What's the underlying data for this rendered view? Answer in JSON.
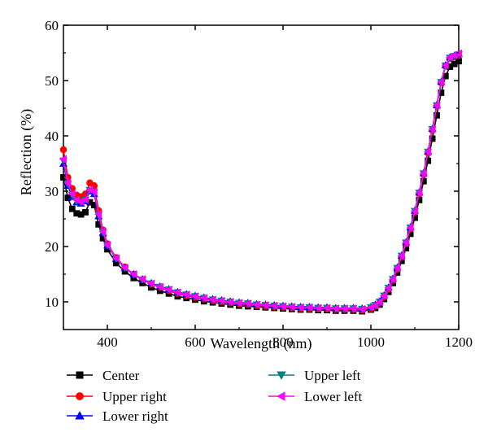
{
  "chart_data": {
    "type": "line",
    "xlabel": "Wavelength (nm)",
    "ylabel": "Reflection (%)",
    "xlim": [
      300,
      1200
    ],
    "ylim": [
      5,
      60
    ],
    "xticks": [
      400,
      600,
      800,
      1000,
      1200
    ],
    "yticks": [
      10,
      20,
      30,
      40,
      50,
      60
    ],
    "grid": false,
    "legend_position": "bottom",
    "x": [
      300,
      310,
      320,
      330,
      340,
      350,
      360,
      370,
      380,
      390,
      400,
      420,
      440,
      460,
      480,
      500,
      520,
      540,
      560,
      580,
      600,
      620,
      640,
      660,
      680,
      700,
      720,
      740,
      760,
      780,
      800,
      820,
      840,
      860,
      880,
      900,
      920,
      940,
      960,
      980,
      1000,
      1010,
      1020,
      1030,
      1040,
      1050,
      1060,
      1070,
      1080,
      1090,
      1100,
      1110,
      1120,
      1130,
      1140,
      1150,
      1160,
      1170,
      1180,
      1190,
      1200
    ],
    "series": [
      {
        "name": "Center",
        "color": "#000000",
        "marker": "square",
        "values": [
          32.5,
          28.8,
          26.8,
          26.0,
          25.8,
          26.2,
          28.0,
          27.5,
          24.0,
          21.5,
          19.5,
          17.0,
          15.5,
          14.3,
          13.4,
          12.6,
          12.0,
          11.5,
          11.0,
          10.7,
          10.4,
          10.1,
          9.9,
          9.7,
          9.5,
          9.3,
          9.2,
          9.1,
          9.0,
          8.9,
          8.8,
          8.7,
          8.6,
          8.6,
          8.5,
          8.5,
          8.4,
          8.4,
          8.4,
          8.3,
          8.6,
          8.9,
          9.5,
          10.5,
          11.8,
          13.4,
          15.3,
          17.4,
          19.7,
          22.3,
          25.2,
          28.4,
          31.8,
          35.5,
          39.5,
          43.7,
          47.8,
          50.8,
          52.5,
          53.0,
          53.5
        ]
      },
      {
        "name": "Upper right",
        "color": "#ff0000",
        "marker": "circle",
        "values": [
          37.5,
          32.5,
          30.5,
          29.3,
          29.0,
          29.5,
          31.5,
          31.0,
          26.5,
          23.0,
          20.5,
          18.0,
          16.3,
          15.0,
          14.0,
          13.2,
          12.6,
          12.0,
          11.5,
          11.1,
          10.8,
          10.5,
          10.2,
          10.0,
          9.8,
          9.6,
          9.5,
          9.3,
          9.2,
          9.1,
          9.0,
          8.9,
          8.8,
          8.8,
          8.7,
          8.7,
          8.6,
          8.6,
          8.6,
          8.5,
          8.8,
          9.2,
          9.8,
          10.9,
          12.3,
          13.9,
          15.9,
          18.1,
          20.5,
          23.2,
          26.2,
          29.5,
          33.0,
          36.9,
          41.0,
          45.4,
          49.6,
          52.6,
          54.0,
          54.3,
          54.5
        ]
      },
      {
        "name": "Lower right",
        "color": "#0000ff",
        "marker": "triangle-up",
        "values": [
          35.0,
          31.0,
          29.0,
          28.0,
          27.8,
          28.2,
          30.0,
          29.5,
          25.5,
          22.5,
          20.2,
          17.8,
          16.2,
          15.0,
          14.1,
          13.4,
          12.8,
          12.3,
          11.8,
          11.4,
          11.1,
          10.8,
          10.5,
          10.3,
          10.1,
          9.9,
          9.8,
          9.6,
          9.5,
          9.4,
          9.3,
          9.2,
          9.1,
          9.1,
          9.0,
          9.0,
          8.9,
          8.9,
          8.9,
          8.8,
          9.1,
          9.5,
          10.1,
          11.2,
          12.6,
          14.2,
          16.2,
          18.4,
          20.8,
          23.5,
          26.5,
          29.8,
          33.3,
          37.2,
          41.3,
          45.6,
          49.8,
          52.8,
          54.2,
          54.5,
          54.8
        ]
      },
      {
        "name": "Upper left",
        "color": "#008080",
        "marker": "triangle-down",
        "values": [
          35.5,
          31.3,
          29.3,
          28.2,
          28.0,
          28.4,
          30.2,
          29.8,
          25.7,
          22.6,
          20.2,
          17.8,
          16.1,
          14.9,
          14.0,
          13.3,
          12.7,
          12.2,
          11.7,
          11.3,
          11.0,
          10.7,
          10.4,
          10.2,
          10.0,
          9.8,
          9.7,
          9.5,
          9.4,
          9.3,
          9.2,
          9.1,
          9.0,
          9.0,
          8.9,
          8.9,
          8.8,
          8.8,
          8.8,
          8.7,
          9.0,
          9.4,
          10.0,
          11.1,
          12.5,
          14.1,
          16.1,
          18.3,
          20.7,
          23.4,
          26.4,
          29.7,
          33.2,
          37.1,
          41.2,
          45.5,
          49.7,
          52.7,
          54.1,
          54.4,
          54.7
        ]
      },
      {
        "name": "Lower left",
        "color": "#ff00ff",
        "marker": "triangle-left",
        "values": [
          35.8,
          31.5,
          29.5,
          28.4,
          28.1,
          28.5,
          30.3,
          29.9,
          25.8,
          22.7,
          20.3,
          17.9,
          16.2,
          15.0,
          14.1,
          13.3,
          12.7,
          12.2,
          11.7,
          11.3,
          11.0,
          10.7,
          10.4,
          10.2,
          10.0,
          9.8,
          9.7,
          9.5,
          9.4,
          9.3,
          9.2,
          9.1,
          9.0,
          9.0,
          8.9,
          8.9,
          8.8,
          8.8,
          8.8,
          8.7,
          9.0,
          9.4,
          10.0,
          11.1,
          12.5,
          14.1,
          16.1,
          18.3,
          20.7,
          23.4,
          26.4,
          29.7,
          33.2,
          37.1,
          41.2,
          45.5,
          49.7,
          52.8,
          54.2,
          54.6,
          54.9
        ]
      }
    ]
  }
}
